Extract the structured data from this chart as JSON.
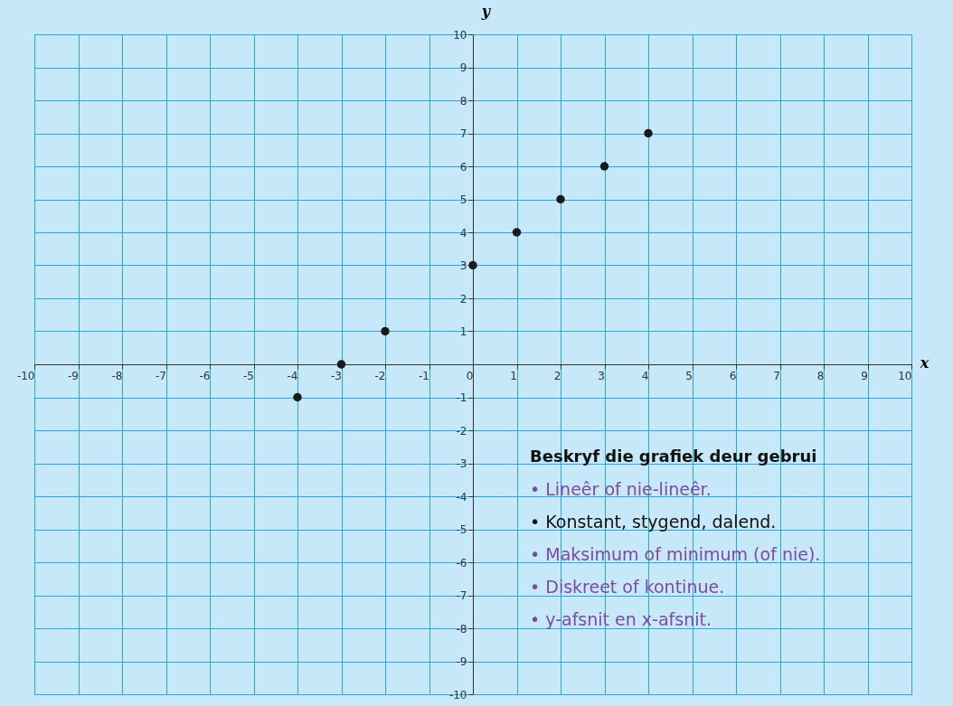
{
  "chart_data": {
    "type": "scatter",
    "xlabel": "x",
    "ylabel": "y",
    "x": [
      -4,
      -3,
      -2,
      0,
      1,
      2,
      3,
      4
    ],
    "values": [
      -1,
      0,
      1,
      3,
      4,
      5,
      6,
      7
    ],
    "color": "#1a1a1a",
    "marker": "circle",
    "grid": true,
    "xlim": [
      -10,
      10
    ],
    "ylim": [
      -10,
      10
    ],
    "xticks": [
      -10,
      -9,
      -8,
      -7,
      -6,
      -5,
      -4,
      -3,
      -2,
      -1,
      0,
      1,
      2,
      3,
      4,
      5,
      6,
      7,
      8,
      9,
      10
    ],
    "yticks": [
      -10,
      -9,
      -8,
      -7,
      -6,
      -5,
      -4,
      -3,
      -2,
      -1,
      1,
      2,
      3,
      4,
      5,
      6,
      7,
      8,
      9,
      10
    ],
    "annotations": [
      "Beskryf die grafiek deur gebrui",
      "• Lineêr  of nie-lineêr.",
      "• Konstant, stygend, dalend.",
      "• Maksimum  of minimum (of nie).",
      "• Diskreet  of kontinue.",
      "• y-afsnit en x-afsnit."
    ]
  }
}
